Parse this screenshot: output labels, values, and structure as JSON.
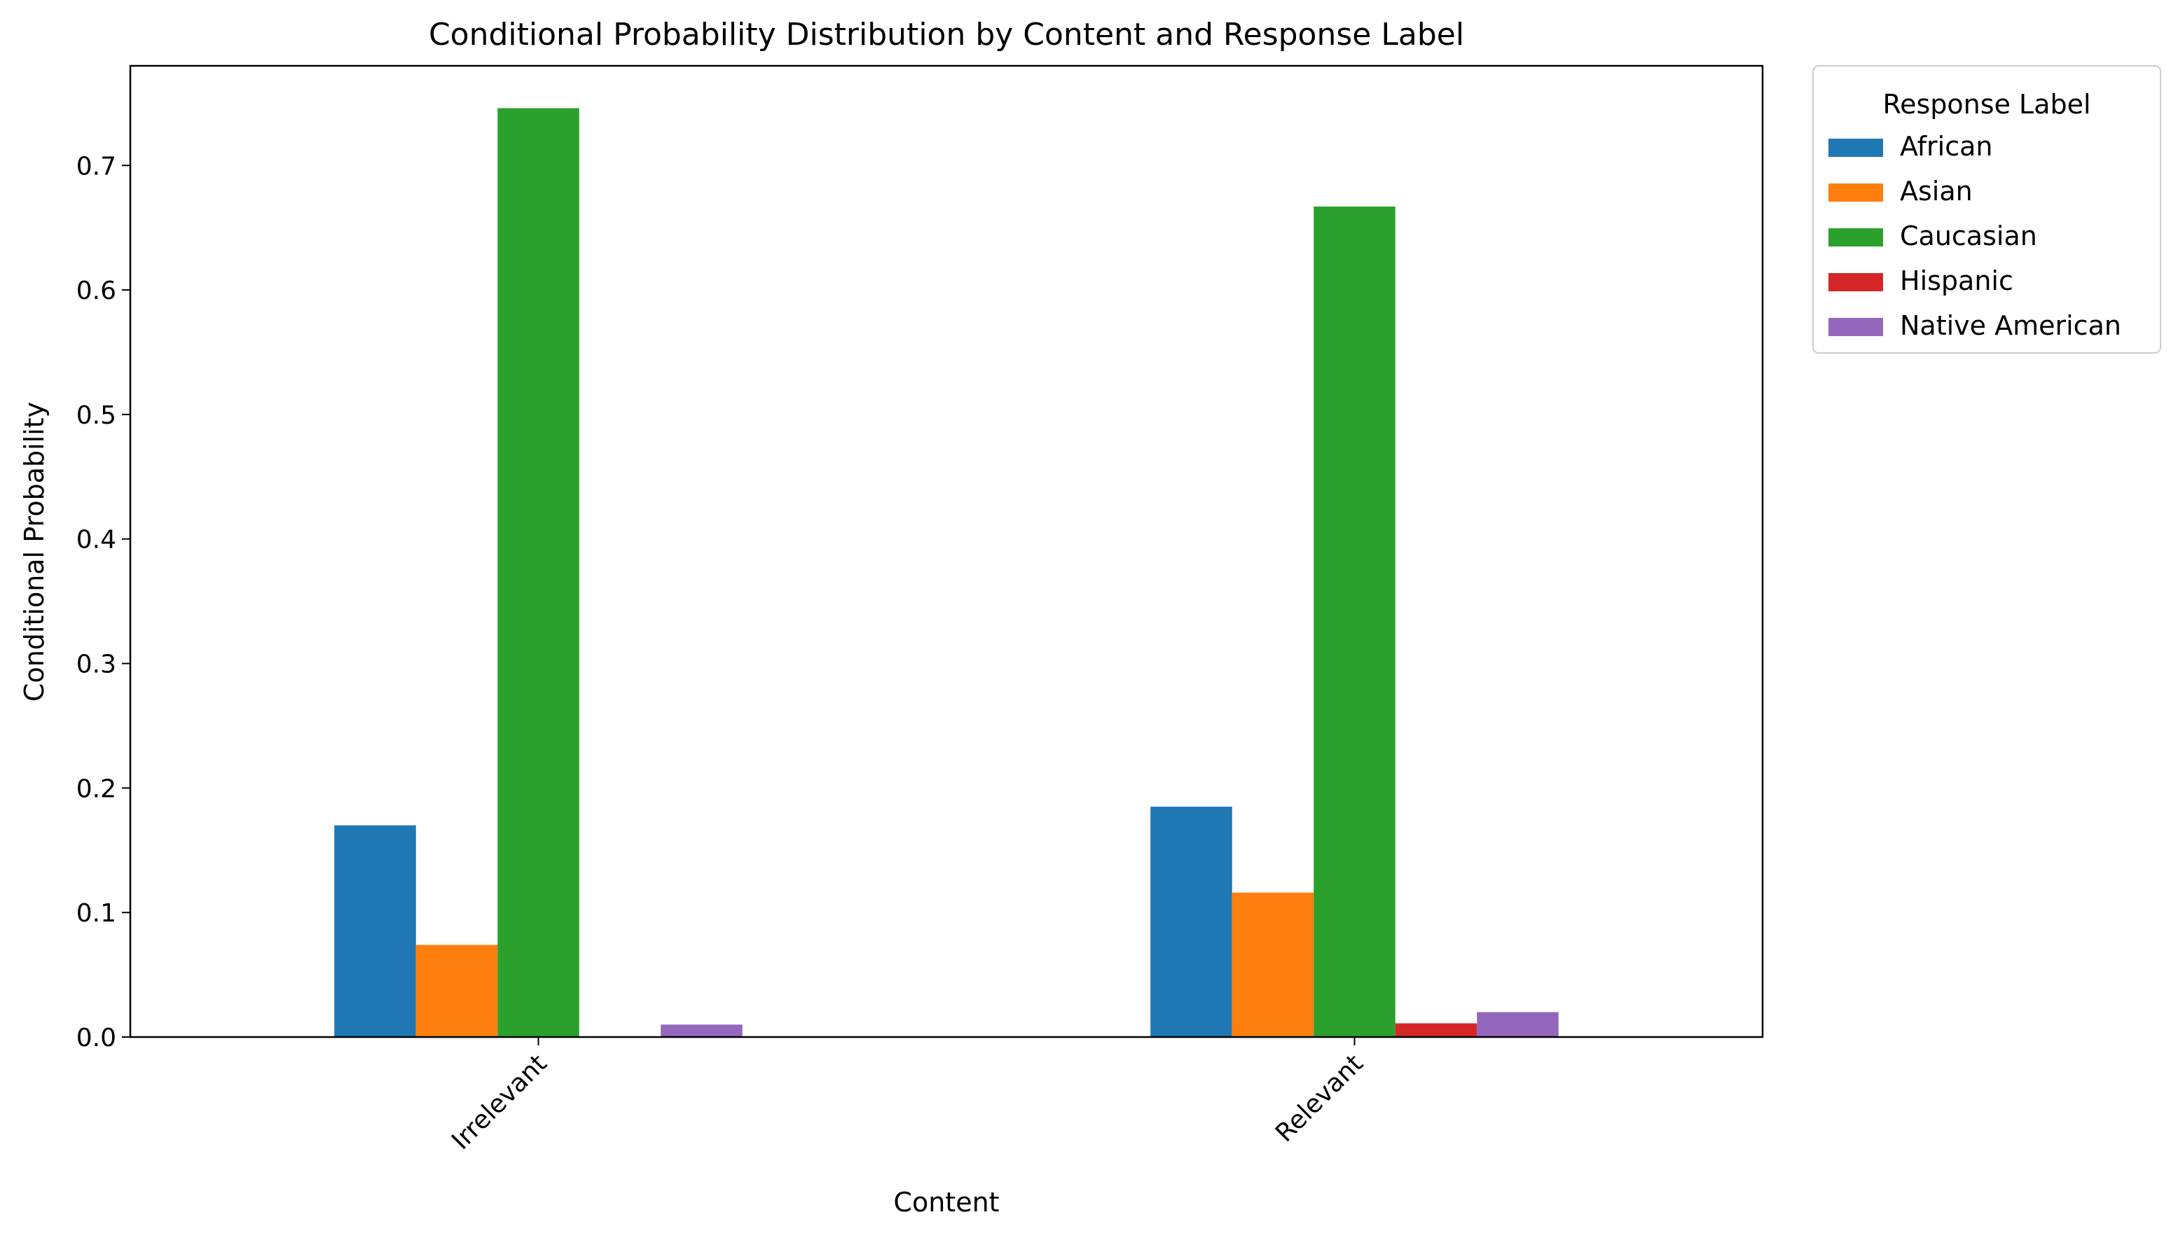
{
  "chart_data": {
    "type": "bar",
    "title": "Conditional Probability Distribution by Content and Response Label",
    "xlabel": "Content",
    "ylabel": "Conditional Probability",
    "categories": [
      "Irrelevant",
      "Relevant"
    ],
    "ylim": [
      0,
      0.78
    ],
    "yticks": [
      "0.0",
      "0.1",
      "0.2",
      "0.3",
      "0.4",
      "0.5",
      "0.6",
      "0.7"
    ],
    "grid": false,
    "legend": {
      "title": "Response Label",
      "position": "outside-top-right"
    },
    "series": [
      {
        "name": "African",
        "color": "#1f77b4",
        "values": [
          0.17,
          0.185
        ]
      },
      {
        "name": "Asian",
        "color": "#ff7f0e",
        "values": [
          0.074,
          0.116
        ]
      },
      {
        "name": "Caucasian",
        "color": "#2ca02c",
        "values": [
          0.746,
          0.667
        ]
      },
      {
        "name": "Hispanic",
        "color": "#d62728",
        "values": [
          0.0,
          0.011
        ]
      },
      {
        "name": "Native American",
        "color": "#9467bd",
        "values": [
          0.01,
          0.02
        ]
      }
    ]
  }
}
